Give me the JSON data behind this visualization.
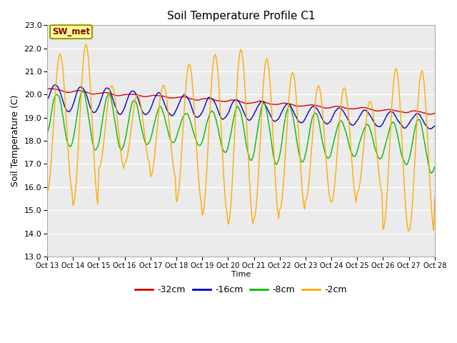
{
  "title": "Soil Temperature Profile C1",
  "ylabel": "Soil Temperature (C)",
  "xlabel": "Time",
  "ylim": [
    13.0,
    23.0
  ],
  "yticks": [
    13.0,
    14.0,
    15.0,
    16.0,
    17.0,
    18.0,
    19.0,
    20.0,
    21.0,
    22.0,
    23.0
  ],
  "annotation": "SW_met",
  "plot_bg": "#ebebeb",
  "fig_bg": "#ffffff",
  "grid_color": "#ffffff",
  "n_points": 361,
  "hours_per_day": 24,
  "xtick_labels": [
    "Oct 13",
    "Oct 14",
    "Oct 15",
    "Oct 16",
    "Oct 17",
    "Oct 18",
    "Oct 19",
    "Oct 20",
    "Oct 21",
    "Oct 22",
    "Oct 23",
    "Oct 24",
    "Oct 25",
    "Oct 26",
    "Oct 27",
    "Oct 28"
  ],
  "legend_labels": [
    "-32cm",
    "-16cm",
    "-8cm",
    "-2cm"
  ],
  "legend_colors": [
    "#dd0000",
    "#0000cc",
    "#00bb00",
    "#ffaa00"
  ],
  "series_colors": [
    "#dd0000",
    "#0000cc",
    "#00bb00",
    "#ffaa00"
  ]
}
